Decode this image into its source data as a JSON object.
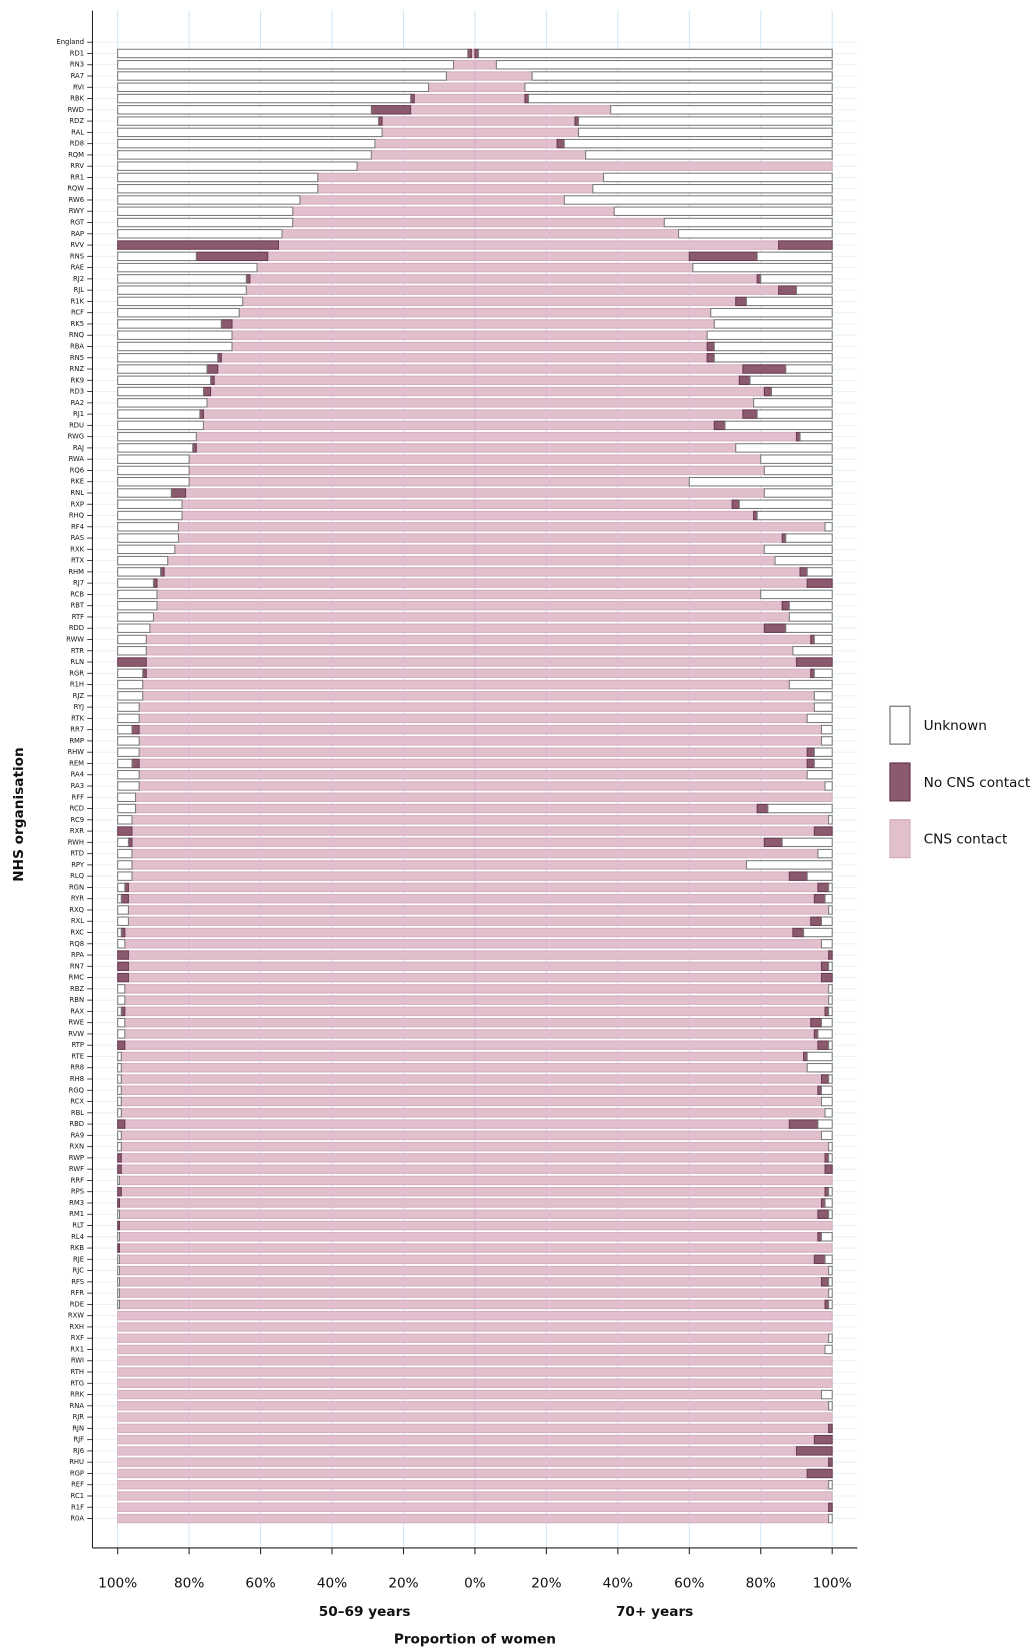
{
  "chart_data": {
    "type": "diverging_stacked_bar",
    "x_label": "Proportion of women",
    "y_label": "NHS organisation",
    "legend": "right",
    "categories": [
      "England",
      "RD1",
      "RN3",
      "RA7",
      "RVI",
      "RBK",
      "RWD",
      "RDZ",
      "RAL",
      "RD8",
      "RQM",
      "RRV",
      "RR1",
      "RQW",
      "RW6",
      "RWY",
      "RGT",
      "RAP",
      "RVV",
      "RNS",
      "RAE",
      "RJ2",
      "RJL",
      "R1K",
      "RCF",
      "RK5",
      "RNQ",
      "RBA",
      "RN5",
      "RNZ",
      "RK9",
      "RD3",
      "RA2",
      "RJ1",
      "RDU",
      "RWG",
      "RAJ",
      "RWA",
      "RQ6",
      "RKE",
      "RNL",
      "RXP",
      "RHQ",
      "RF4",
      "RAS",
      "RXK",
      "RTX",
      "RHM",
      "RJ7",
      "RCB",
      "RBT",
      "RTF",
      "RDD",
      "RWW",
      "RTR",
      "RLN",
      "RGR",
      "R1H",
      "RJZ",
      "RYJ",
      "RTK",
      "RR7",
      "RMP",
      "RHW",
      "REM",
      "RA4",
      "RA3",
      "RFF",
      "RCD",
      "RC9",
      "RXR",
      "RWH",
      "RTD",
      "RPY",
      "RLQ",
      "RGN",
      "RYR",
      "RXQ",
      "RXL",
      "RXC",
      "RQ8",
      "RPA",
      "RN7",
      "RMC",
      "RBZ",
      "RBN",
      "RAX",
      "RWE",
      "RVW",
      "RTP",
      "RTE",
      "RR8",
      "RH8",
      "RGQ",
      "RCX",
      "RBL",
      "RBD",
      "RA9",
      "RXN",
      "RWP",
      "RWF",
      "RRF",
      "RPS",
      "RM3",
      "RM1",
      "RLT",
      "RL4",
      "RKB",
      "RJE",
      "RJC",
      "RFS",
      "RFR",
      "RDE",
      "RXW",
      "RXH",
      "RXF",
      "RX1",
      "RWI",
      "RTH",
      "RTG",
      "RRK",
      "RNA",
      "RJR",
      "RJN",
      "RJF",
      "RJ6",
      "RHU",
      "RGP",
      "REF",
      "RC1",
      "R1F",
      "R0A"
    ],
    "panels": [
      {
        "name": "50–69 years",
        "xlim": [
          0,
          100
        ],
        "xticks": [
          {
            "value": 100,
            "label": "100%"
          },
          {
            "value": 80,
            "label": "80%"
          },
          {
            "value": 60,
            "label": "60%"
          },
          {
            "value": 40,
            "label": "40%"
          },
          {
            "value": 20,
            "label": "20%"
          },
          {
            "value": 0,
            "label": "0%"
          }
        ],
        "series": [
          {
            "name": "Unknown",
            "color": "#ffffff",
            "edgecolor": "#7a7a7a",
            "values": [
              null,
              98,
              94,
              92,
              87,
              82,
              71,
              73,
              74,
              72,
              71,
              67,
              56,
              56,
              51,
              49,
              49,
              46,
              0,
              22,
              39,
              36,
              36,
              35,
              34,
              29,
              32,
              32,
              28,
              25,
              26,
              24,
              25,
              23,
              24,
              22,
              21,
              20,
              20,
              20,
              15,
              18,
              18,
              17,
              17,
              16,
              14,
              12,
              10,
              11,
              11,
              10,
              9,
              8,
              8,
              0,
              7,
              7,
              7,
              6,
              6,
              4,
              6,
              6,
              4,
              6,
              6,
              5,
              5,
              4,
              0,
              3,
              4,
              4,
              4,
              2,
              1,
              3,
              3,
              1,
              2,
              0,
              0,
              0,
              2,
              2,
              1,
              2,
              2,
              0,
              1,
              1,
              1,
              1,
              1,
              1,
              0,
              1,
              1,
              0,
              0,
              0.5,
              0,
              0,
              0.5,
              0,
              0.5,
              0,
              0.5,
              0.5,
              0.5,
              0.5,
              0.5,
              0,
              0,
              0,
              0,
              0,
              0,
              0,
              0,
              0,
              0,
              0,
              0,
              0,
              0,
              0,
              0,
              0,
              0,
              0
            ]
          },
          {
            "name": "No CNS contact",
            "color": "#8c5a6f",
            "edgecolor": "#6a3a50",
            "values": [
              null,
              1,
              0,
              0,
              0,
              1,
              11,
              1,
              0,
              0,
              0,
              0,
              0,
              0,
              0,
              0,
              0,
              0,
              45,
              20,
              0,
              1,
              0,
              0,
              0,
              3,
              0,
              0,
              1,
              3,
              1,
              2,
              0,
              1,
              0,
              0,
              1,
              0,
              0,
              0,
              4,
              0,
              0,
              0,
              0,
              0,
              0,
              1,
              1,
              0,
              0,
              0,
              0,
              0,
              0,
              8,
              1,
              0,
              0,
              0,
              0,
              2,
              0,
              0,
              2,
              0,
              0,
              0,
              0,
              0,
              4,
              1,
              0,
              0,
              0,
              1,
              2,
              0,
              0,
              1,
              0,
              3,
              3,
              3,
              0,
              0,
              1,
              0,
              0,
              2,
              0,
              0,
              0,
              0,
              0,
              0,
              2,
              0,
              0,
              1,
              1,
              0,
              1,
              0.5,
              0,
              0.5,
              0,
              0.5,
              0,
              0,
              0,
              0,
              0,
              0,
              0,
              0,
              0,
              0,
              0,
              0,
              0,
              0,
              0,
              0,
              0,
              0,
              0,
              0,
              0,
              0,
              0,
              0
            ]
          },
          {
            "name": "CNS contact",
            "color": "#e2bfcd",
            "edgecolor": "#d6afbf",
            "values": [
              null,
              1,
              6,
              8,
              13,
              17,
              18,
              26,
              26,
              28,
              29,
              33,
              44,
              44,
              49,
              51,
              51,
              54,
              55,
              58,
              61,
              63,
              64,
              65,
              66,
              68,
              68,
              68,
              71,
              72,
              73,
              74,
              75,
              76,
              76,
              78,
              78,
              80,
              80,
              80,
              81,
              82,
              82,
              83,
              83,
              84,
              86,
              87,
              89,
              89,
              89,
              90,
              91,
              92,
              92,
              92,
              92,
              93,
              93,
              94,
              94,
              94,
              94,
              94,
              94,
              94,
              94,
              95,
              95,
              96,
              96,
              96,
              96,
              96,
              96,
              97,
              97,
              97,
              97,
              98,
              98,
              97,
              97,
              97,
              98,
              98,
              98,
              98,
              98,
              98,
              99,
              99,
              99,
              99,
              99,
              99,
              98,
              99,
              99,
              99,
              99,
              99.5,
              99,
              99.5,
              99.5,
              99.5,
              99.5,
              99.5,
              99.5,
              99.5,
              99.5,
              99.5,
              99.5,
              100,
              100,
              100,
              100,
              100,
              100,
              100,
              100,
              100,
              100,
              100,
              100,
              100,
              100,
              100,
              100,
              100,
              100,
              100
            ]
          }
        ]
      },
      {
        "name": "70+ years",
        "xlim": [
          0,
          100
        ],
        "xticks": [
          {
            "value": 20,
            "label": "20%"
          },
          {
            "value": 40,
            "label": "40%"
          },
          {
            "value": 60,
            "label": "60%"
          },
          {
            "value": 80,
            "label": "80%"
          },
          {
            "value": 100,
            "label": "100%"
          }
        ],
        "series": [
          {
            "name": "Unknown",
            "color": "#ffffff",
            "edgecolor": "#7a7a7a",
            "values": [
              null,
              99,
              94,
              84,
              86,
              85,
              62,
              71,
              71,
              75,
              69,
              0,
              64,
              67,
              75,
              61,
              47,
              43,
              0,
              21,
              39,
              20,
              10,
              24,
              34,
              33,
              35,
              33,
              33,
              13,
              23,
              17,
              22,
              21,
              30,
              9,
              27,
              20,
              19,
              40,
              19,
              26,
              21,
              2,
              13,
              19,
              16,
              7,
              0,
              20,
              12,
              12,
              13,
              5,
              11,
              0,
              5,
              12,
              5,
              5,
              7,
              3,
              3,
              5,
              5,
              7,
              2,
              0,
              18,
              1,
              0,
              14,
              4,
              24,
              7,
              1,
              2,
              1,
              3,
              8,
              3,
              0,
              1,
              0,
              1,
              1,
              1,
              3,
              4,
              1,
              7,
              7,
              1,
              3,
              3,
              2,
              4,
              3,
              1,
              1,
              0,
              0,
              1,
              2,
              1,
              0,
              3,
              0,
              2,
              1,
              1,
              1,
              1,
              0,
              0,
              1,
              2,
              0,
              0,
              0,
              3,
              1,
              0,
              0,
              0,
              0,
              0,
              0,
              1,
              0,
              0,
              1
            ]
          },
          {
            "name": "No CNS contact",
            "color": "#8c5a6f",
            "edgecolor": "#6a3a50",
            "values": [
              null,
              1,
              0,
              0,
              0,
              1,
              0,
              1,
              0,
              2,
              0,
              0,
              0,
              0,
              0,
              0,
              0,
              0,
              15,
              19,
              0,
              1,
              5,
              3,
              0,
              0,
              0,
              2,
              2,
              12,
              3,
              2,
              0,
              4,
              3,
              1,
              0,
              0,
              0,
              0,
              0,
              2,
              1,
              0,
              1,
              0,
              0,
              2,
              7,
              0,
              2,
              0,
              6,
              1,
              0,
              10,
              1,
              0,
              0,
              0,
              0,
              0,
              0,
              2,
              2,
              0,
              0,
              0,
              3,
              0,
              5,
              5,
              0,
              0,
              5,
              3,
              3,
              0,
              3,
              3,
              0,
              1,
              2,
              3,
              0,
              0,
              1,
              3,
              1,
              3,
              1,
              0,
              2,
              1,
              0,
              0,
              8,
              0,
              0,
              1,
              2,
              0,
              1,
              1,
              3,
              0,
              1,
              0,
              3,
              0,
              2,
              0,
              1,
              0,
              0,
              0,
              0,
              0,
              0,
              0,
              0,
              0,
              0,
              1,
              5,
              10,
              1,
              7,
              0,
              0,
              1,
              0
            ]
          },
          {
            "name": "CNS contact",
            "color": "#e2bfcd",
            "edgecolor": "#d6afbf",
            "values": [
              null,
              0,
              6,
              16,
              14,
              14,
              38,
              28,
              29,
              23,
              31,
              100,
              36,
              33,
              25,
              39,
              53,
              57,
              85,
              60,
              61,
              79,
              85,
              73,
              66,
              67,
              65,
              65,
              65,
              75,
              74,
              81,
              78,
              75,
              67,
              90,
              73,
              80,
              81,
              60,
              81,
              72,
              78,
              98,
              86,
              81,
              84,
              91,
              93,
              80,
              86,
              88,
              81,
              94,
              89,
              90,
              94,
              88,
              95,
              95,
              93,
              97,
              97,
              93,
              93,
              93,
              98,
              100,
              79,
              99,
              95,
              81,
              96,
              76,
              88,
              96,
              95,
              99,
              94,
              89,
              97,
              99,
              97,
              97,
              99,
              99,
              98,
              94,
              95,
              96,
              92,
              93,
              97,
              96,
              97,
              98,
              88,
              97,
              99,
              98,
              98,
              100,
              98,
              97,
              96,
              100,
              96,
              100,
              95,
              99,
              97,
              99,
              98,
              100,
              100,
              99,
              98,
              100,
              100,
              100,
              97,
              99,
              100,
              99,
              95,
              90,
              99,
              93,
              99,
              100,
              99,
              99
            ]
          }
        ]
      }
    ]
  }
}
